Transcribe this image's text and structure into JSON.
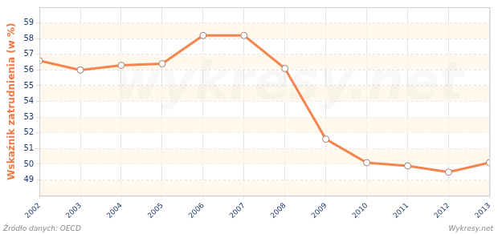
{
  "chart_data": {
    "type": "line",
    "y_label": "Wskaźnik zatrudnienia (w %)",
    "categories": [
      "2002",
      "2003",
      "2004",
      "2005",
      "2006",
      "2007",
      "2008",
      "2009",
      "2010",
      "2011",
      "2012",
      "2013"
    ],
    "values": [
      56.6,
      56.0,
      56.3,
      56.4,
      58.2,
      58.2,
      56.1,
      51.6,
      50.1,
      49.9,
      49.5,
      50.1
    ],
    "color": "#f5854f",
    "marker": "circle",
    "ylim": [
      48,
      60
    ],
    "yticks": [
      49,
      50,
      51,
      52,
      53,
      54,
      55,
      56,
      57,
      58,
      59
    ],
    "grid": true,
    "annotations": [
      "Źródło danych: OECD",
      "Wykresy.net",
      "wykresy.net"
    ]
  }
}
